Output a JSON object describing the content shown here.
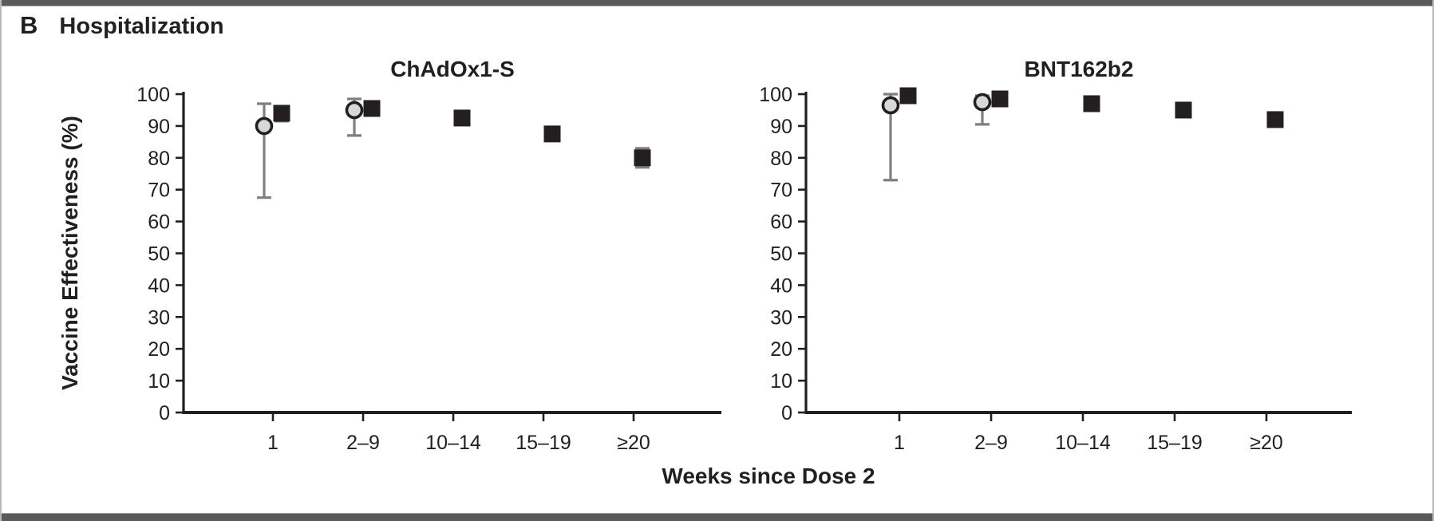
{
  "header": {
    "panel_label": "B",
    "title": "Hospitalization"
  },
  "colors": {
    "axis": "#231f20",
    "text": "#231f20",
    "square_fill": "#231f20",
    "circle_fill": "#d8d8d8",
    "circle_stroke": "#231f20",
    "error_bar": "#7f7f7f",
    "frame_bar": "#595a5c",
    "background": "#ffffff"
  },
  "chart_data": [
    {
      "type": "scatter",
      "title": "ChAdOx1-S",
      "ylabel": "Vaccine Effectiveness (%)",
      "xlabel": "Weeks since Dose 2",
      "ylim": [
        0,
        100
      ],
      "yticks": [
        0,
        10,
        20,
        30,
        40,
        50,
        60,
        70,
        80,
        90,
        100
      ],
      "categories": [
        "1",
        "2–9",
        "10–14",
        "15–19",
        "≥20"
      ],
      "grid": false,
      "legend": "none",
      "series": [
        {
          "name": "circle-series",
          "marker": "circle",
          "values": [
            90,
            95,
            null,
            null,
            null
          ],
          "ci_low": [
            67.5,
            87,
            null,
            null,
            null
          ],
          "ci_high": [
            97,
            98.5,
            null,
            null,
            null
          ]
        },
        {
          "name": "square-series",
          "marker": "square",
          "values": [
            94,
            95.5,
            92.5,
            87.5,
            80
          ],
          "ci_low": [
            91.5,
            null,
            null,
            null,
            77
          ],
          "ci_high": [
            96,
            null,
            null,
            null,
            83
          ]
        }
      ]
    },
    {
      "type": "scatter",
      "title": "BNT162b2",
      "ylabel": "Vaccine Effectiveness (%)",
      "xlabel": "Weeks since Dose 2",
      "ylim": [
        0,
        100
      ],
      "yticks": [
        0,
        10,
        20,
        30,
        40,
        50,
        60,
        70,
        80,
        90,
        100
      ],
      "categories": [
        "1",
        "2–9",
        "10–14",
        "15–19",
        "≥20"
      ],
      "grid": false,
      "legend": "none",
      "series": [
        {
          "name": "circle-series",
          "marker": "circle",
          "values": [
            96.5,
            97.5,
            null,
            null,
            null
          ],
          "ci_low": [
            73,
            90.5,
            null,
            null,
            null
          ],
          "ci_high": [
            100,
            99.5,
            null,
            null,
            null
          ]
        },
        {
          "name": "square-series",
          "marker": "square",
          "values": [
            99.5,
            98.5,
            97,
            95,
            92
          ],
          "ci_low": [
            null,
            null,
            null,
            null,
            null
          ],
          "ci_high": [
            null,
            null,
            null,
            null,
            null
          ]
        }
      ]
    }
  ]
}
